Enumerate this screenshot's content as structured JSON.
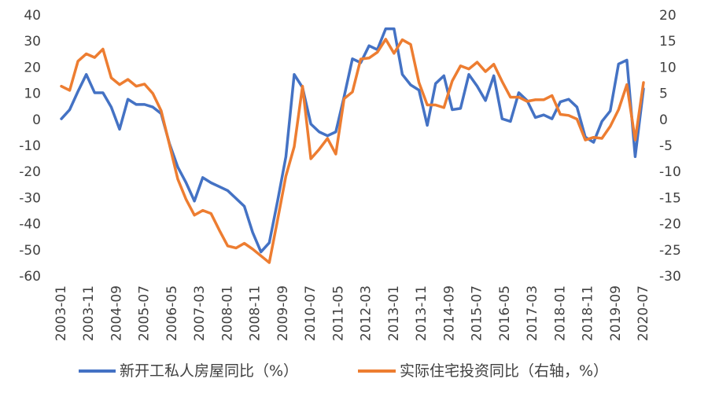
{
  "chart_data": {
    "type": "line",
    "title": "",
    "x": [
      "2003-01",
      "2003-04",
      "2003-07",
      "2003-10",
      "2004-01",
      "2004-04",
      "2004-07",
      "2004-10",
      "2005-01",
      "2005-04",
      "2005-07",
      "2005-10",
      "2006-01",
      "2006-04",
      "2006-07",
      "2006-10",
      "2007-01",
      "2007-04",
      "2007-07",
      "2007-10",
      "2008-01",
      "2008-04",
      "2008-07",
      "2008-10",
      "2009-01",
      "2009-04",
      "2009-07",
      "2009-10",
      "2010-01",
      "2010-04",
      "2010-07",
      "2010-10",
      "2011-01",
      "2011-04",
      "2011-07",
      "2011-10",
      "2012-01",
      "2012-04",
      "2012-07",
      "2012-10",
      "2013-01",
      "2013-04",
      "2013-07",
      "2013-10",
      "2014-01",
      "2014-04",
      "2014-07",
      "2014-10",
      "2015-01",
      "2015-04",
      "2015-07",
      "2015-10",
      "2016-01",
      "2016-04",
      "2016-07",
      "2016-10",
      "2017-01",
      "2017-04",
      "2017-07",
      "2017-10",
      "2018-01",
      "2018-04",
      "2018-07",
      "2018-10",
      "2019-01",
      "2019-04",
      "2019-07",
      "2019-10",
      "2020-01",
      "2020-04",
      "2020-07"
    ],
    "x_tick_labels": [
      "2003-01",
      "2003-11",
      "2004-09",
      "2005-07",
      "2006-05",
      "2007-03",
      "2008-01",
      "2008-11",
      "2009-09",
      "2010-07",
      "2011-05",
      "2012-03",
      "2013-01",
      "2013-11",
      "2014-09",
      "2015-07",
      "2016-05",
      "2017-03",
      "2018-01",
      "2018-11",
      "2019-09",
      "2020-07"
    ],
    "y_left": {
      "ticks": [
        40,
        30,
        20,
        10,
        0,
        -10,
        -20,
        -30,
        -40,
        -50,
        -60
      ],
      "ylim": [
        -60,
        40
      ]
    },
    "y_right": {
      "ticks": [
        20,
        15,
        10,
        5,
        0,
        -5,
        -10,
        -15,
        -20,
        -25,
        -30
      ],
      "ylim": [
        -30,
        20
      ]
    },
    "series": [
      {
        "name": "新开工私人房屋同比（%）",
        "axis": "left",
        "color": "#4472C4",
        "values": [
          0.5,
          4,
          11,
          17.5,
          10.5,
          10.5,
          5,
          -3.5,
          8,
          6,
          6,
          5,
          2.5,
          -9,
          -18,
          -24,
          -31,
          -22,
          -24,
          -25.5,
          -27,
          -30,
          -33,
          -43,
          -50.5,
          -47,
          -31,
          -14,
          17.5,
          12.5,
          -1.5,
          -4.5,
          -6,
          -4.5,
          9,
          23.5,
          22,
          28.5,
          27,
          35,
          35,
          17.5,
          13.5,
          11.5,
          -2,
          14,
          17,
          4,
          4.5,
          17.5,
          13,
          7.5,
          17,
          0.5,
          -0.5,
          10.5,
          7.5,
          1,
          2,
          0.5,
          7,
          8,
          5,
          -6.5,
          -8.5,
          -0.5,
          3.5,
          21.5,
          23,
          -14,
          12
        ]
      },
      {
        "name": "实际住宅投资同比（右轴，%）",
        "axis": "right",
        "color": "#ED7D31",
        "values": [
          6.5,
          5.7,
          11.3,
          12.7,
          12,
          13.6,
          8.1,
          6.8,
          7.8,
          6.5,
          6.9,
          5.1,
          1.8,
          -4.7,
          -11.3,
          -15.2,
          -18.2,
          -17.3,
          -17.9,
          -21.1,
          -24.1,
          -24.5,
          -23.6,
          -24.7,
          -26,
          -27.3,
          -19.1,
          -10.7,
          -5.1,
          6.5,
          -7.4,
          -5.6,
          -3.5,
          -6.5,
          4.1,
          5.4,
          11.7,
          11.9,
          13,
          15.5,
          12.8,
          15.4,
          14.5,
          7.2,
          2.9,
          2.9,
          2.4,
          7.5,
          10.4,
          9.8,
          11.1,
          9.3,
          10.7,
          7.4,
          4.4,
          4.4,
          3.6,
          3.9,
          3.9,
          4.7,
          1.1,
          0.9,
          0.2,
          -3.8,
          -3.3,
          -3.5,
          -1.2,
          2,
          6.8,
          -3.8,
          7.2
        ]
      }
    ],
    "grid": false,
    "legend": "bottom"
  }
}
